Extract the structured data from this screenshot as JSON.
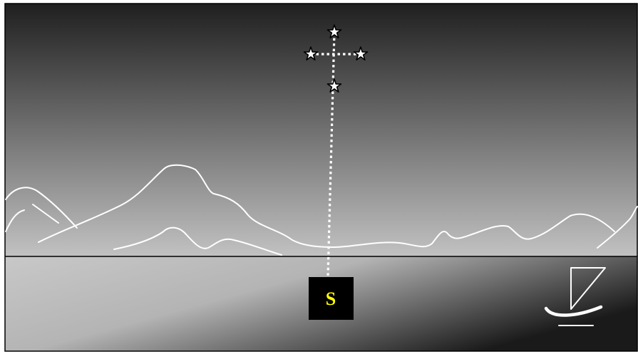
{
  "scene": {
    "sky_top_color": "#1f1f1f",
    "sky_bottom_color": "#c2c2c2",
    "sea_light_color": "#c8c8c8",
    "sea_dark_color": "#1a1a1a",
    "line_color": "#ffffff",
    "frame_color": "#000000"
  },
  "constellation": {
    "name_icon": "southern-cross-icon",
    "star_icon": "star-icon",
    "star_count": 4
  },
  "south_marker": {
    "label": "S",
    "label_color": "#ffff00",
    "box_color": "#000000"
  },
  "boat": {
    "icon": "sailboat-icon"
  }
}
